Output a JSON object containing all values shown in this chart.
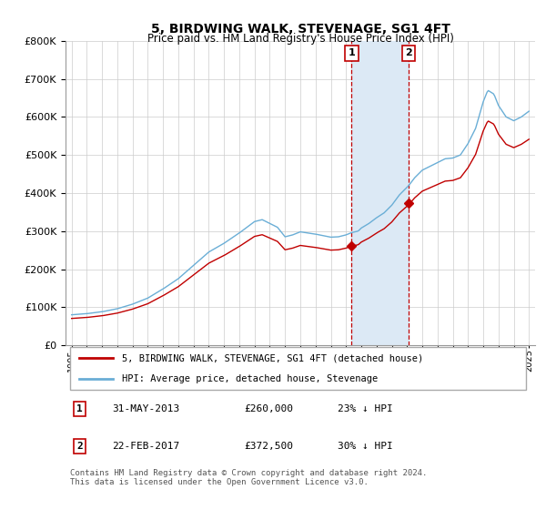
{
  "title": "5, BIRDWING WALK, STEVENAGE, SG1 4FT",
  "subtitle": "Price paid vs. HM Land Registry's House Price Index (HPI)",
  "hpi_color": "#6aaed6",
  "price_color": "#c00000",
  "highlight_color": "#dce9f5",
  "legend_line1": "5, BIRDWING WALK, STEVENAGE, SG1 4FT (detached house)",
  "legend_line2": "HPI: Average price, detached house, Stevenage",
  "table_row1_num": "1",
  "table_row1_date": "31-MAY-2013",
  "table_row1_price": "£260,000",
  "table_row1_hpi": "23% ↓ HPI",
  "table_row2_num": "2",
  "table_row2_date": "22-FEB-2017",
  "table_row2_price": "£372,500",
  "table_row2_hpi": "30% ↓ HPI",
  "footer": "Contains HM Land Registry data © Crown copyright and database right 2024.\nThis data is licensed under the Open Government Licence v3.0.",
  "ylim": [
    0,
    800000
  ],
  "yticks": [
    0,
    100000,
    200000,
    300000,
    400000,
    500000,
    600000,
    700000,
    800000
  ],
  "sale1_year": 2013.37,
  "sale1_price": 260000,
  "sale2_year": 2017.12,
  "sale2_price": 372500,
  "xlim_left": 1994.6,
  "xlim_right": 2025.4
}
